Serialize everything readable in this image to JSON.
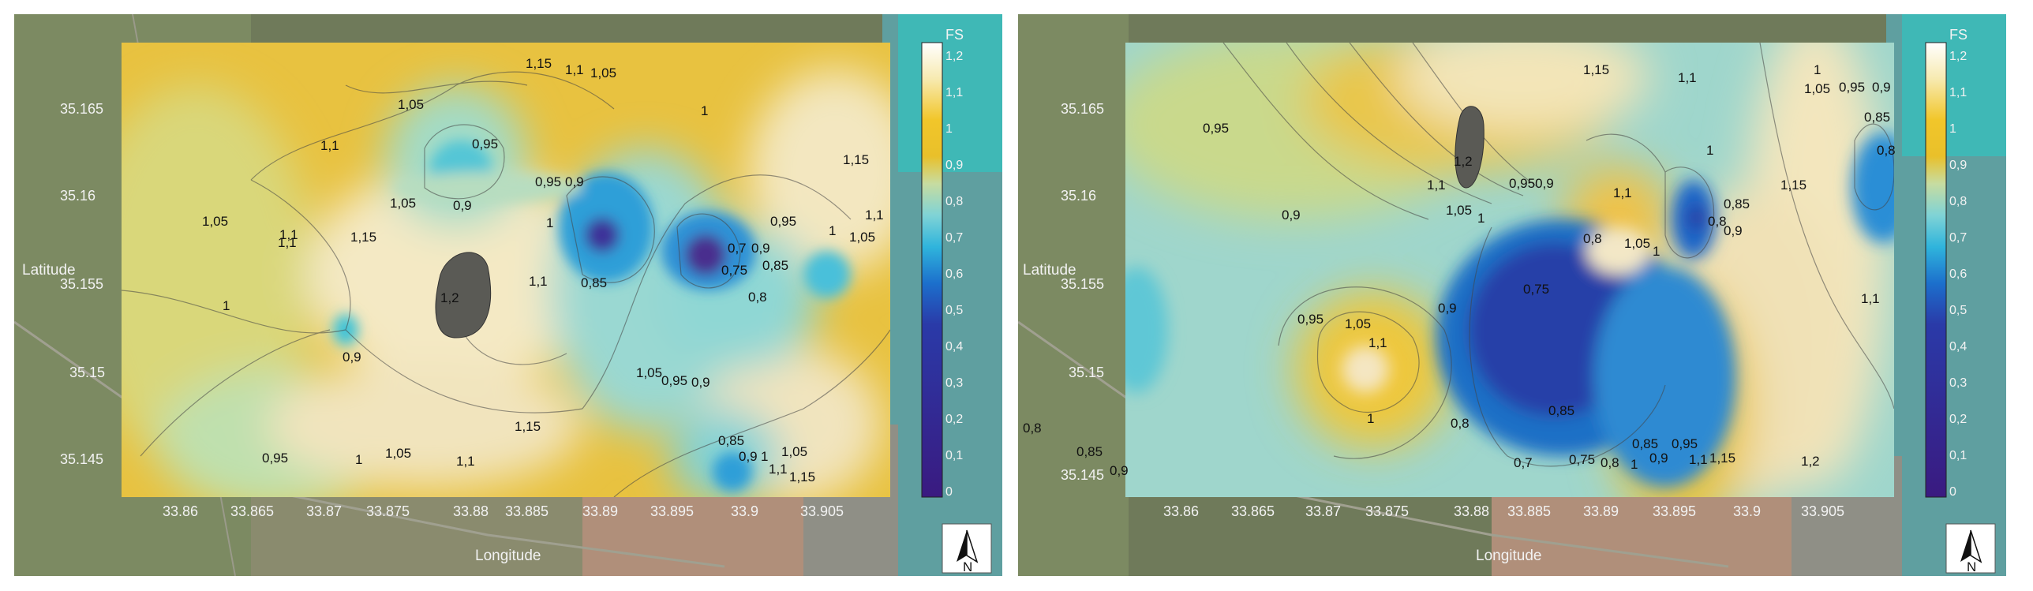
{
  "colorbar": {
    "title": "FS",
    "ticks": [
      "1,2",
      "1,1",
      "1",
      "0,9",
      "0,8",
      "0,7",
      "0,6",
      "0,5",
      "0,4",
      "0,3",
      "0,2",
      "0,1",
      "0"
    ],
    "colors": [
      "#ffffff",
      "#f7eab0",
      "#f4d34a",
      "#f0bf12",
      "#c9d98c",
      "#9fd6c9",
      "#35bfdc",
      "#1e7fd1",
      "#2236a8",
      "#2a1e8c",
      "#3a1d86",
      "#3b1c85",
      "#3a1a80"
    ]
  },
  "north_arrow": {
    "label": "N"
  },
  "panels": [
    {
      "id": "left",
      "axis": {
        "x_title": "Longitude",
        "y_title": "Latitude",
        "x_ticks": [
          "33.86",
          "33.865",
          "33.87",
          "33.875",
          "33.88",
          "33.885",
          "33.89",
          "33.895",
          "33.9",
          "33.905"
        ],
        "y_ticks": [
          "35.165",
          "35.16",
          "35.155",
          "35.15",
          "35.145"
        ]
      },
      "contour_labels": [
        "1,15",
        "1,1",
        "1,05",
        "1",
        "1,1",
        "0,95",
        "0,9",
        "1,05",
        "0,95",
        "0,9",
        "1,15",
        "1,1",
        "1,05",
        "1,05",
        "1,1",
        "1,15",
        "1,2",
        "1",
        "1,1",
        "0,85",
        "0,7",
        "0,9",
        "0,75",
        "0,85",
        "0,95",
        "0,8",
        "1",
        "1,05",
        "1,1",
        "0,9",
        "1",
        "1,05",
        "0,95",
        "0,9",
        "1,15",
        "1,05",
        "0,95",
        "1",
        "1,1",
        "0,85",
        "0,9",
        "1",
        "1,05",
        "1,1",
        "1,15"
      ]
    },
    {
      "id": "right",
      "axis": {
        "x_title": "Longitude",
        "y_title": "Latitude",
        "x_ticks": [
          "33.86",
          "33.865",
          "33.87",
          "33.875",
          "33.88",
          "33.885",
          "33.89",
          "33.895",
          "33.9",
          "33.905"
        ],
        "y_ticks": [
          "35.165",
          "35.16",
          "35.155",
          "35.15",
          "35.145"
        ]
      },
      "contour_labels": [
        "1,15",
        "1,1",
        "1",
        "1,05",
        "0,95",
        "0,9",
        "0,95",
        "1,2",
        "1,1",
        "1",
        "1,05",
        "0,85",
        "0,9",
        "0,950,9",
        "1,1",
        "1",
        "0,8",
        "1,05",
        "1",
        "0,8",
        "0,9",
        "0,85",
        "1,15",
        "0,8",
        "0,75",
        "0,95",
        "1,05",
        "0,9",
        "1,1",
        "1,1",
        "1",
        "0,8",
        "0,85",
        "0,8",
        "0,85",
        "0,9",
        "0,7",
        "0,75",
        "0,8",
        "0,85",
        "0,9",
        "1",
        "0,95",
        "1,1",
        "1,15",
        "1,2"
      ]
    }
  ]
}
